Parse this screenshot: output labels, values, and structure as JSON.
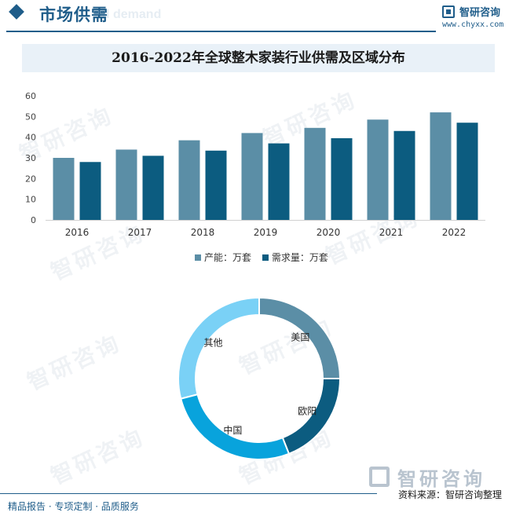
{
  "header": {
    "section_title": "市场供需",
    "section_title_bg": "nd demand",
    "brand_name": "智研咨询",
    "brand_url": "www.chyxx.com"
  },
  "watermark_text": "智研咨询",
  "colors": {
    "accent": "#1f5d8a",
    "production": "#5b8ea6",
    "demand": "#0c5c80",
    "usa": "#5b8ea6",
    "europe": "#0c5c80",
    "china": "#08a3dc",
    "others": "#7ad1f6"
  },
  "chart_data": [
    {
      "type": "bar",
      "title": "2016-2022年全球整木家装行业供需及区域分布",
      "categories": [
        "2016",
        "2017",
        "2018",
        "2019",
        "2020",
        "2021",
        "2022"
      ],
      "series": [
        {
          "name": "产能：万套",
          "values": [
            30,
            34,
            38.5,
            42,
            44.5,
            48.5,
            52
          ]
        },
        {
          "name": "需求量：万套",
          "values": [
            28,
            31,
            33.5,
            37,
            39.5,
            43,
            47
          ]
        }
      ],
      "ylim": [
        0,
        60
      ],
      "yticks": [
        0,
        10,
        20,
        30,
        40,
        50,
        60
      ],
      "xlabel": "",
      "ylabel": "",
      "legend": "bottom-center",
      "grid": false
    },
    {
      "type": "pie",
      "style": "donut",
      "labels": [
        "美国",
        "欧阳",
        "中国",
        "其他"
      ],
      "values": [
        25,
        19,
        27,
        29
      ]
    }
  ],
  "footer": {
    "logo_text": "智研咨询",
    "source": "资料来源：智研咨询整理",
    "tagline": "精品报告 · 专项定制 · 品质服务"
  }
}
